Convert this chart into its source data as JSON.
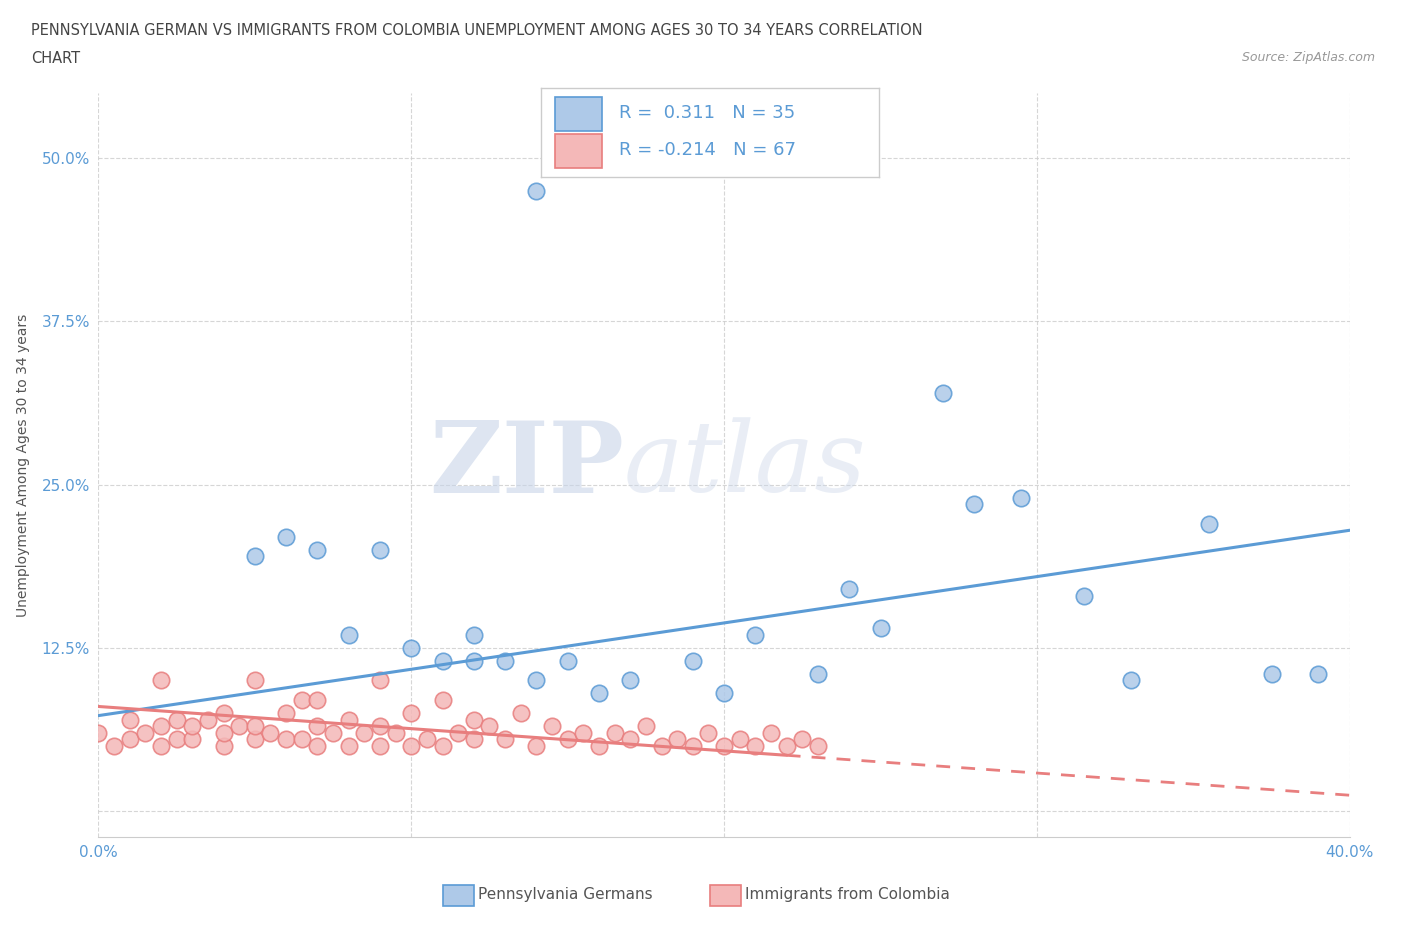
{
  "title_line1": "PENNSYLVANIA GERMAN VS IMMIGRANTS FROM COLOMBIA UNEMPLOYMENT AMONG AGES 30 TO 34 YEARS CORRELATION",
  "title_line2": "CHART",
  "source_text": "Source: ZipAtlas.com",
  "ylabel": "Unemployment Among Ages 30 to 34 years",
  "xlim": [
    0.0,
    0.4
  ],
  "ylim": [
    -0.02,
    0.55
  ],
  "xticks": [
    0.0,
    0.1,
    0.2,
    0.3,
    0.4
  ],
  "xtick_labels": [
    "0.0%",
    "",
    "",
    "",
    "40.0%"
  ],
  "yticks": [
    0.0,
    0.125,
    0.25,
    0.375,
    0.5
  ],
  "ytick_labels": [
    "",
    "12.5%",
    "25.0%",
    "37.5%",
    "50.0%"
  ],
  "grid_color": "#cccccc",
  "background_color": "#ffffff",
  "watermark_zip": "ZIP",
  "watermark_atlas": "atlas",
  "blue_color": "#5b9bd5",
  "blue_fill": "#aec9e8",
  "pink_color": "#e87e7e",
  "pink_fill": "#f4b8b8",
  "blue_scatter_x": [
    0.14,
    0.05,
    0.06,
    0.07,
    0.08,
    0.09,
    0.1,
    0.11,
    0.12,
    0.12,
    0.13,
    0.14,
    0.15,
    0.16,
    0.17,
    0.19,
    0.2,
    0.21,
    0.23,
    0.24,
    0.25,
    0.27,
    0.28,
    0.295,
    0.315,
    0.33,
    0.355,
    0.375,
    0.39
  ],
  "blue_scatter_y": [
    0.475,
    0.195,
    0.21,
    0.2,
    0.135,
    0.2,
    0.125,
    0.115,
    0.135,
    0.115,
    0.115,
    0.1,
    0.115,
    0.09,
    0.1,
    0.115,
    0.09,
    0.135,
    0.105,
    0.17,
    0.14,
    0.32,
    0.235,
    0.24,
    0.165,
    0.1,
    0.22,
    0.105,
    0.105
  ],
  "pink_scatter_x": [
    0.0,
    0.005,
    0.01,
    0.01,
    0.015,
    0.02,
    0.02,
    0.02,
    0.025,
    0.025,
    0.03,
    0.03,
    0.035,
    0.04,
    0.04,
    0.04,
    0.045,
    0.05,
    0.05,
    0.05,
    0.055,
    0.06,
    0.06,
    0.065,
    0.065,
    0.07,
    0.07,
    0.07,
    0.075,
    0.08,
    0.08,
    0.085,
    0.09,
    0.09,
    0.09,
    0.095,
    0.1,
    0.1,
    0.105,
    0.11,
    0.11,
    0.115,
    0.12,
    0.12,
    0.125,
    0.13,
    0.135,
    0.14,
    0.145,
    0.15,
    0.155,
    0.16,
    0.165,
    0.17,
    0.175,
    0.18,
    0.185,
    0.19,
    0.195,
    0.2,
    0.205,
    0.21,
    0.215,
    0.22,
    0.225,
    0.23
  ],
  "pink_scatter_y": [
    0.06,
    0.05,
    0.055,
    0.07,
    0.06,
    0.05,
    0.065,
    0.1,
    0.055,
    0.07,
    0.055,
    0.065,
    0.07,
    0.05,
    0.06,
    0.075,
    0.065,
    0.055,
    0.065,
    0.1,
    0.06,
    0.055,
    0.075,
    0.055,
    0.085,
    0.05,
    0.065,
    0.085,
    0.06,
    0.05,
    0.07,
    0.06,
    0.05,
    0.065,
    0.1,
    0.06,
    0.05,
    0.075,
    0.055,
    0.05,
    0.085,
    0.06,
    0.055,
    0.07,
    0.065,
    0.055,
    0.075,
    0.05,
    0.065,
    0.055,
    0.06,
    0.05,
    0.06,
    0.055,
    0.065,
    0.05,
    0.055,
    0.05,
    0.06,
    0.05,
    0.055,
    0.05,
    0.06,
    0.05,
    0.055,
    0.05
  ],
  "blue_trend_x": [
    0.0,
    0.4
  ],
  "blue_trend_y": [
    0.073,
    0.215
  ],
  "pink_trend_x": [
    0.0,
    0.4
  ],
  "pink_trend_y": [
    0.08,
    0.012
  ]
}
